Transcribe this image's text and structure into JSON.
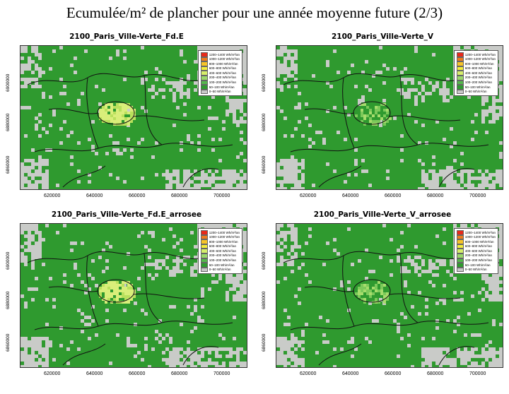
{
  "slide": {
    "title": "Ecumulée/m² de plancher pour une année moyenne future (2/3)"
  },
  "legend": [
    {
      "label": "1200–1400 Wh/m²/an",
      "color": "#e8291a"
    },
    {
      "label": "1000–1200 Wh/m²/an",
      "color": "#f07a1c"
    },
    {
      "label": "800–1000 Wh/m²/an",
      "color": "#f7c428"
    },
    {
      "label": "600–800 Wh/m²/an",
      "color": "#f4ee3a"
    },
    {
      "label": "400–600 Wh/m²/an",
      "color": "#d6ee6a"
    },
    {
      "label": "200–400 Wh/m²/an",
      "color": "#9bd86a"
    },
    {
      "label": "100–200 Wh/m²/an",
      "color": "#55b84c"
    },
    {
      "label": "50–100 Wh/m²/an",
      "color": "#2e9b2e"
    },
    {
      "label": "0–50 Wh/m²/an",
      "color": "#c8c8c8"
    }
  ],
  "axes": {
    "x_ticks": [
      "620000",
      "640000",
      "660000",
      "680000",
      "700000"
    ],
    "y_ticks": [
      "6900000",
      "6880000",
      "6860000"
    ]
  },
  "colors": {
    "background": "#c9cbc8",
    "vegetation": "#2f9a2f",
    "urban_core": "#d9ee7a"
  },
  "panels": [
    {
      "title": "2100_Paris_Ville-Verte_Fd.E",
      "core_intensity": "high"
    },
    {
      "title": "2100_Paris_Ville-Verte_V",
      "core_intensity": "low"
    },
    {
      "title": "2100_Paris_Ville-Verte_Fd.E_arrosee",
      "core_intensity": "high"
    },
    {
      "title": "2100_Paris_Ville-Verte_V_arrosee",
      "core_intensity": "low"
    }
  ]
}
